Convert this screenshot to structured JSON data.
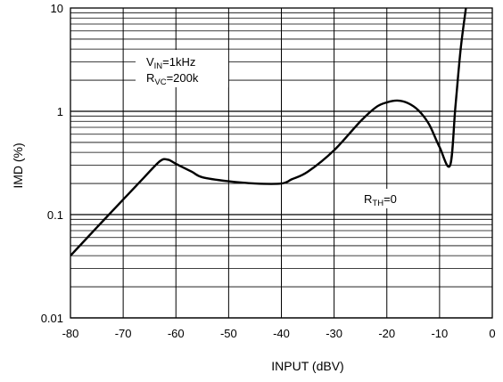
{
  "chart_data": {
    "type": "line",
    "title": "",
    "xlabel": "INPUT (dBV)",
    "ylabel": "IMD (%)",
    "xlim": [
      -80,
      0
    ],
    "ylim": [
      0.01,
      10
    ],
    "yscale": "log",
    "grid": true,
    "x_ticks": [
      "-80",
      "-70",
      "-60",
      "-50",
      "-40",
      "-30",
      "-20",
      "-10",
      "0"
    ],
    "y_ticks": [
      "0.01",
      "0.1",
      "1",
      "10"
    ],
    "annotations": {
      "vin": {
        "main": "V",
        "sub": "IN",
        "rest": "=1kHz"
      },
      "rvc": {
        "main": "R",
        "sub": "VC",
        "rest": "=200k"
      },
      "rth": {
        "main": "R",
        "sub": "TH",
        "rest": "=0"
      }
    },
    "series": [
      {
        "x": [
          -80,
          -75,
          -70,
          -66,
          -63,
          -61.5,
          -60,
          -57,
          -55,
          -50,
          -45,
          -40,
          -38,
          -35,
          -30,
          -25,
          -22,
          -20,
          -18,
          -16,
          -14,
          -12,
          -10,
          -8,
          -7,
          -6,
          -5
        ],
        "y": [
          0.04,
          0.075,
          0.14,
          0.23,
          0.33,
          0.34,
          0.31,
          0.26,
          0.23,
          0.21,
          0.2,
          0.2,
          0.22,
          0.26,
          0.42,
          0.8,
          1.1,
          1.22,
          1.27,
          1.2,
          1.02,
          0.75,
          0.45,
          0.3,
          1.1,
          4,
          10
        ]
      }
    ]
  }
}
